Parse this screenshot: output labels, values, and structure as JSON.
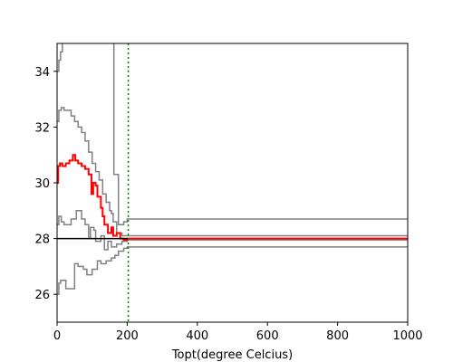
{
  "chart_data": {
    "type": "line",
    "title": "",
    "xlabel": "Topt(degree Celcius)",
    "ylabel": "",
    "xlim": [
      0,
      1000
    ],
    "ylim": [
      25,
      35
    ],
    "xticks": [
      0,
      200,
      400,
      600,
      800,
      1000
    ],
    "yticks": [
      26,
      28,
      30,
      32,
      34
    ],
    "grid": false,
    "colors": {
      "gray": "#808080",
      "red": "#ff0000",
      "black": "#000000",
      "marker": "#008000"
    },
    "hline_y": 28.0,
    "vline_x": 203,
    "series": [
      {
        "color": "gray",
        "points": [
          [
            0,
            34.0
          ],
          [
            5,
            34.0
          ],
          [
            5,
            34.4
          ],
          [
            10,
            34.4
          ],
          [
            10,
            34.7
          ],
          [
            15,
            34.7
          ],
          [
            15,
            35.2
          ],
          [
            1000,
            35.2
          ]
        ]
      },
      {
        "color": "gray",
        "points": [
          [
            0,
            26.0
          ],
          [
            5,
            26.0
          ],
          [
            5,
            26.4
          ],
          [
            10,
            26.4
          ],
          [
            10,
            26.5
          ],
          [
            25,
            26.5
          ],
          [
            25,
            26.2
          ],
          [
            50,
            26.2
          ],
          [
            50,
            27.1
          ],
          [
            60,
            27.1
          ],
          [
            60,
            27.0
          ],
          [
            75,
            27.0
          ],
          [
            75,
            26.9
          ],
          [
            85,
            26.9
          ],
          [
            85,
            26.7
          ],
          [
            100,
            26.7
          ],
          [
            100,
            26.9
          ],
          [
            115,
            26.9
          ],
          [
            115,
            27.2
          ],
          [
            125,
            27.2
          ],
          [
            125,
            27.1
          ],
          [
            140,
            27.1
          ],
          [
            140,
            27.2
          ],
          [
            155,
            27.2
          ],
          [
            155,
            27.3
          ],
          [
            165,
            27.3
          ],
          [
            165,
            27.4
          ],
          [
            175,
            27.4
          ],
          [
            175,
            27.55
          ],
          [
            190,
            27.55
          ],
          [
            190,
            27.65
          ],
          [
            200,
            27.65
          ],
          [
            200,
            27.7
          ],
          [
            1000,
            27.7
          ]
        ]
      },
      {
        "color": "gray",
        "points": [
          [
            0,
            28.5
          ],
          [
            5,
            28.5
          ],
          [
            5,
            28.8
          ],
          [
            12,
            28.8
          ],
          [
            12,
            28.6
          ],
          [
            20,
            28.6
          ],
          [
            20,
            28.5
          ],
          [
            40,
            28.5
          ],
          [
            40,
            28.7
          ],
          [
            55,
            28.7
          ],
          [
            55,
            29.0
          ],
          [
            70,
            29.0
          ],
          [
            70,
            28.7
          ],
          [
            80,
            28.7
          ],
          [
            80,
            28.5
          ],
          [
            90,
            28.5
          ],
          [
            90,
            28.0
          ],
          [
            95,
            28.0
          ],
          [
            95,
            28.4
          ],
          [
            105,
            28.4
          ],
          [
            105,
            28.3
          ],
          [
            110,
            28.3
          ],
          [
            110,
            27.9
          ],
          [
            125,
            27.9
          ],
          [
            125,
            28.1
          ],
          [
            135,
            28.1
          ],
          [
            135,
            27.6
          ],
          [
            145,
            27.6
          ],
          [
            145,
            27.9
          ],
          [
            155,
            27.9
          ],
          [
            155,
            27.7
          ],
          [
            170,
            27.7
          ],
          [
            170,
            27.8
          ],
          [
            185,
            27.8
          ],
          [
            185,
            27.9
          ],
          [
            200,
            27.9
          ],
          [
            200,
            27.95
          ],
          [
            1000,
            27.95
          ]
        ]
      },
      {
        "color": "gray",
        "points": [
          [
            0,
            32.2
          ],
          [
            5,
            32.2
          ],
          [
            5,
            32.6
          ],
          [
            12,
            32.6
          ],
          [
            12,
            32.7
          ],
          [
            20,
            32.7
          ],
          [
            20,
            32.6
          ],
          [
            40,
            32.6
          ],
          [
            40,
            32.4
          ],
          [
            50,
            32.4
          ],
          [
            50,
            32.2
          ],
          [
            60,
            32.2
          ],
          [
            60,
            32.0
          ],
          [
            70,
            32.0
          ],
          [
            70,
            31.8
          ],
          [
            80,
            31.8
          ],
          [
            80,
            31.5
          ],
          [
            90,
            31.5
          ],
          [
            90,
            31.1
          ],
          [
            100,
            31.1
          ],
          [
            100,
            30.7
          ],
          [
            110,
            30.7
          ],
          [
            110,
            30.4
          ],
          [
            120,
            30.4
          ],
          [
            120,
            30.1
          ],
          [
            130,
            30.1
          ],
          [
            130,
            29.6
          ],
          [
            140,
            29.6
          ],
          [
            140,
            29.3
          ],
          [
            150,
            29.3
          ],
          [
            150,
            29.0
          ],
          [
            155,
            29.0
          ],
          [
            155,
            28.9
          ],
          [
            160,
            28.9
          ],
          [
            160,
            28.6
          ],
          [
            170,
            28.6
          ],
          [
            170,
            28.2
          ],
          [
            185,
            28.2
          ],
          [
            185,
            28.1
          ],
          [
            1000,
            28.1
          ]
        ]
      },
      {
        "color": "gray",
        "points": [
          [
            0,
            35.2
          ],
          [
            162,
            35.2
          ],
          [
            162,
            30.3
          ],
          [
            175,
            30.3
          ],
          [
            175,
            28.5
          ],
          [
            190,
            28.5
          ],
          [
            190,
            28.6
          ],
          [
            200,
            28.6
          ],
          [
            200,
            28.7
          ],
          [
            1000,
            28.7
          ]
        ]
      },
      {
        "color": "red",
        "points": [
          [
            0,
            30.0
          ],
          [
            3,
            30.0
          ],
          [
            3,
            30.6
          ],
          [
            8,
            30.6
          ],
          [
            8,
            30.7
          ],
          [
            15,
            30.7
          ],
          [
            15,
            30.6
          ],
          [
            25,
            30.6
          ],
          [
            25,
            30.7
          ],
          [
            35,
            30.7
          ],
          [
            35,
            30.8
          ],
          [
            45,
            30.8
          ],
          [
            45,
            31.0
          ],
          [
            52,
            31.0
          ],
          [
            52,
            30.8
          ],
          [
            60,
            30.8
          ],
          [
            60,
            30.7
          ],
          [
            70,
            30.7
          ],
          [
            70,
            30.6
          ],
          [
            80,
            30.6
          ],
          [
            80,
            30.5
          ],
          [
            90,
            30.5
          ],
          [
            90,
            30.3
          ],
          [
            98,
            30.3
          ],
          [
            98,
            29.6
          ],
          [
            103,
            29.6
          ],
          [
            103,
            30.0
          ],
          [
            110,
            30.0
          ],
          [
            110,
            29.9
          ],
          [
            115,
            29.9
          ],
          [
            115,
            29.5
          ],
          [
            125,
            29.5
          ],
          [
            125,
            29.1
          ],
          [
            130,
            29.1
          ],
          [
            130,
            28.8
          ],
          [
            135,
            28.8
          ],
          [
            135,
            28.5
          ],
          [
            145,
            28.5
          ],
          [
            145,
            28.2
          ],
          [
            155,
            28.2
          ],
          [
            155,
            28.4
          ],
          [
            160,
            28.4
          ],
          [
            160,
            28.1
          ],
          [
            170,
            28.1
          ],
          [
            170,
            28.2
          ],
          [
            180,
            28.2
          ],
          [
            180,
            28.0
          ],
          [
            190,
            28.0
          ],
          [
            190,
            27.95
          ],
          [
            200,
            27.95
          ],
          [
            200,
            28.0
          ],
          [
            1000,
            28.0
          ]
        ]
      }
    ]
  }
}
